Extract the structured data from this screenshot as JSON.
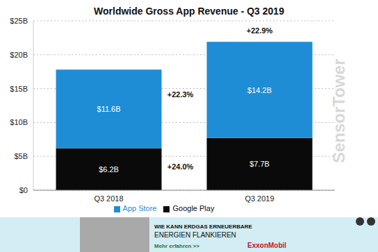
{
  "chart_data": {
    "type": "bar",
    "title": "Worldwide Gross App Revenue - Q3 2019",
    "categories": [
      "Q3 2018",
      "Q3 2019"
    ],
    "series": [
      {
        "name": "Google Play",
        "color": "#0a0a0a",
        "values": [
          6.2,
          7.7
        ],
        "value_labels": [
          "$6.2B",
          "$7.7B"
        ],
        "change": "+24.0%"
      },
      {
        "name": "App Store",
        "color": "#1f8dd6",
        "values": [
          11.6,
          14.2
        ],
        "value_labels": [
          "$11.6B",
          "$14.2B"
        ],
        "change": "+22.3%"
      }
    ],
    "total_change": "+22.9%",
    "stacked": true,
    "data_labels": true,
    "grid": true,
    "legend": "bottom",
    "ylim": [
      0,
      25
    ],
    "yticks": [
      {
        "value": 0,
        "label": "$0"
      },
      {
        "value": 5,
        "label": "$5B"
      },
      {
        "value": 10,
        "label": "$10B"
      },
      {
        "value": 15,
        "label": "$15B"
      },
      {
        "value": 20,
        "label": "$20B"
      },
      {
        "value": 25,
        "label": "$25B"
      }
    ]
  },
  "watermark": "SensorTower",
  "ad": {
    "headline": "WIE KANN ERDGAS ERNEUERBARE",
    "subline": "ENERGIEN FLANKIEREN",
    "link": "Mehr erfahren >>",
    "brand": "ExxonMobil"
  }
}
